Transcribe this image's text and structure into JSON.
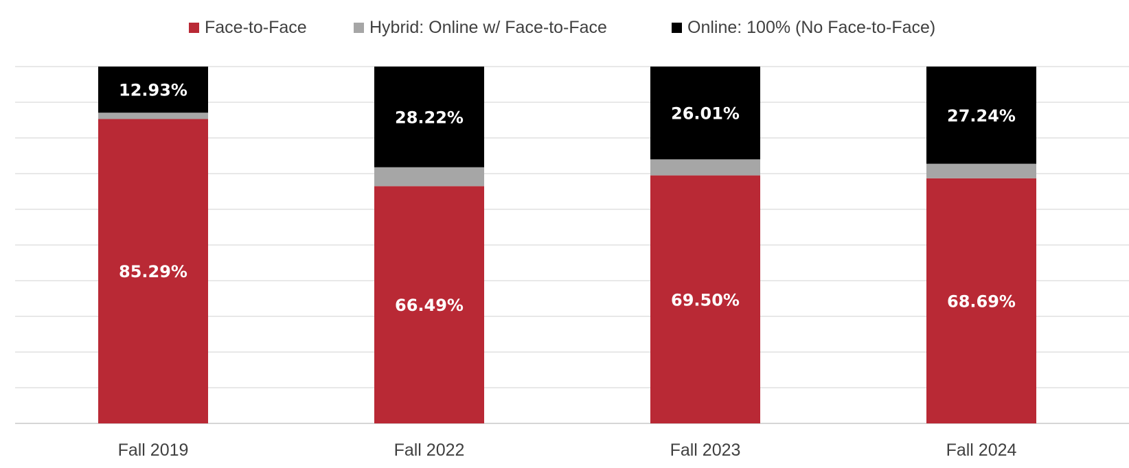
{
  "legend": {
    "items": [
      {
        "label": "Face-to-Face",
        "color": "#b92935"
      },
      {
        "label": "Hybrid: Online w/ Face-to-Face",
        "color": "#a6a6a6"
      },
      {
        "label": "Online: 100% (No Face-to-Face)",
        "color": "#000000"
      }
    ]
  },
  "chart_data": {
    "type": "bar",
    "stacked": true,
    "categories": [
      "Fall 2019",
      "Fall 2022",
      "Fall 2023",
      "Fall 2024"
    ],
    "series": [
      {
        "name": "Face-to-Face",
        "color": "#b92935",
        "values": [
          85.29,
          66.49,
          69.5,
          68.69
        ],
        "labels": [
          "85.29%",
          "66.49%",
          "69.50%",
          "68.69%"
        ]
      },
      {
        "name": "Hybrid: Online w/ Face-to-Face",
        "color": "#a6a6a6",
        "values": [
          1.78,
          5.29,
          4.49,
          4.07
        ],
        "labels": [
          "",
          "",
          "",
          ""
        ]
      },
      {
        "name": "Online: 100% (No Face-to-Face)",
        "color": "#000000",
        "values": [
          12.93,
          28.22,
          26.01,
          27.24
        ],
        "labels": [
          "12.93%",
          "28.22%",
          "26.01%",
          "27.24%"
        ]
      }
    ],
    "ylim": [
      0,
      100
    ],
    "grid": true,
    "legend_position": "top"
  }
}
